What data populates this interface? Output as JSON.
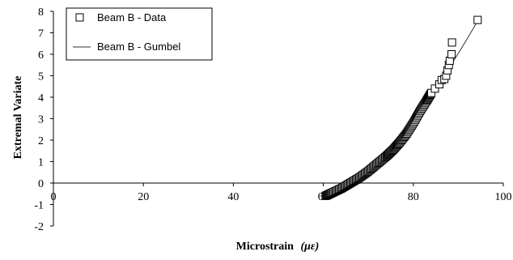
{
  "chart_data": {
    "type": "scatter",
    "xlabel_text": "Microstrain",
    "xlabel_symbol": "(με)",
    "ylabel": "Extremal Variate",
    "xlim": [
      0,
      100
    ],
    "ylim": [
      -2,
      8
    ],
    "xticks": [
      0,
      20,
      40,
      60,
      80,
      100
    ],
    "yticks": [
      8,
      7,
      6,
      5,
      4,
      3,
      2,
      1,
      0,
      -1,
      -2
    ],
    "legend_position": "top-left",
    "grid": false,
    "colors": {
      "marker": "#000000",
      "line": "#333333"
    },
    "series": [
      {
        "name": "Beam B - Data",
        "kind": "markers",
        "marker": "open-square",
        "points": [
          [
            60.5,
            -0.6
          ],
          [
            62.0,
            -0.45
          ],
          [
            64.0,
            -0.25
          ],
          [
            66.0,
            0.0
          ],
          [
            68.0,
            0.25
          ],
          [
            70.0,
            0.55
          ],
          [
            72.0,
            0.9
          ],
          [
            74.0,
            1.25
          ],
          [
            75.5,
            1.55
          ],
          [
            77.0,
            1.9
          ],
          [
            78.5,
            2.3
          ],
          [
            80.0,
            2.8
          ],
          [
            81.5,
            3.35
          ],
          [
            83.0,
            3.85
          ],
          [
            84.0,
            4.2
          ],
          [
            84.8,
            4.4
          ],
          [
            85.8,
            4.6
          ],
          [
            86.3,
            4.8
          ],
          [
            86.9,
            4.85
          ],
          [
            87.3,
            5.0
          ],
          [
            87.6,
            5.25
          ],
          [
            87.9,
            5.5
          ],
          [
            88.1,
            5.7
          ],
          [
            88.5,
            6.0
          ],
          [
            88.6,
            6.55
          ],
          [
            94.3,
            7.6
          ]
        ]
      },
      {
        "name": "Beam B - Gumbel",
        "kind": "line",
        "points": [
          [
            60.5,
            -0.65
          ],
          [
            64.0,
            -0.3
          ],
          [
            68.0,
            0.2
          ],
          [
            72.0,
            0.85
          ],
          [
            76.0,
            1.65
          ],
          [
            80.0,
            2.75
          ],
          [
            83.0,
            3.75
          ],
          [
            85.0,
            4.35
          ],
          [
            87.0,
            5.0
          ],
          [
            89.0,
            5.7
          ],
          [
            91.5,
            6.55
          ],
          [
            94.3,
            7.55
          ]
        ]
      }
    ]
  }
}
